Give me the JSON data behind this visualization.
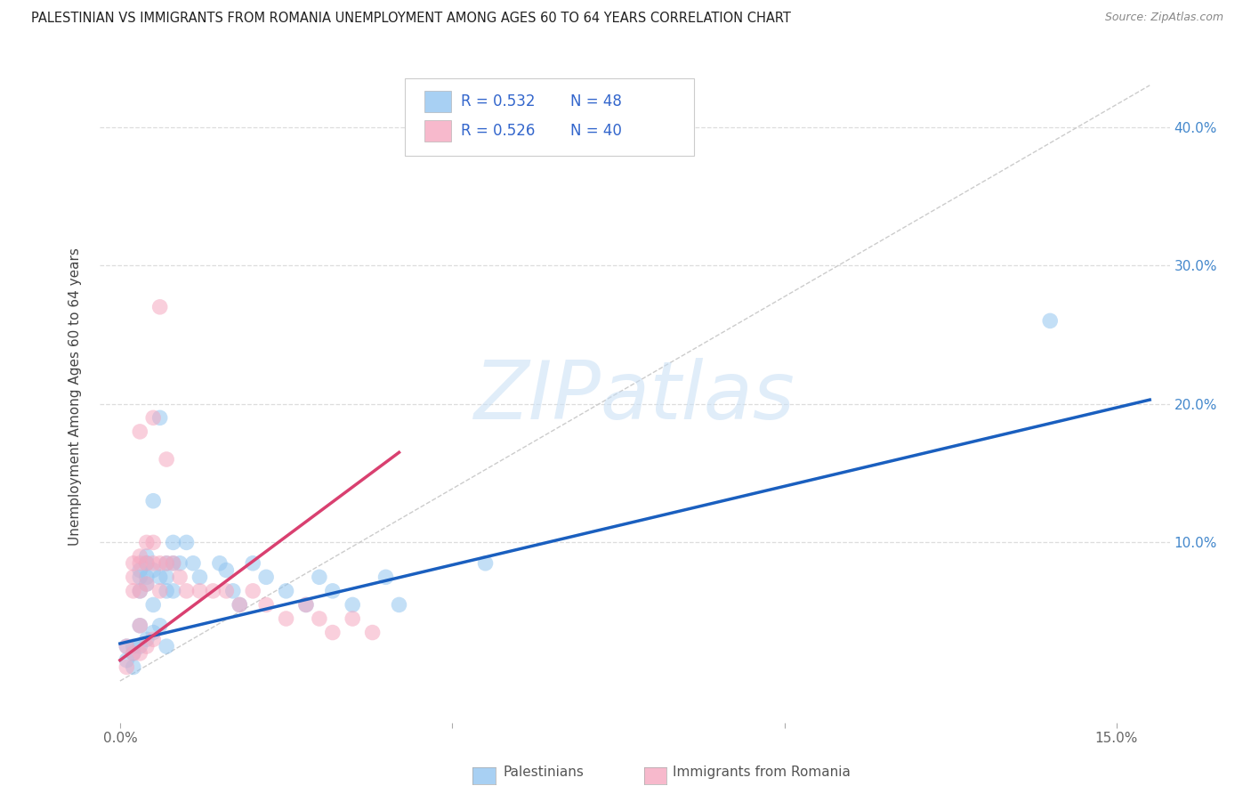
{
  "title": "PALESTINIAN VS IMMIGRANTS FROM ROMANIA UNEMPLOYMENT AMONG AGES 60 TO 64 YEARS CORRELATION CHART",
  "source": "Source: ZipAtlas.com",
  "xlim": [
    -0.003,
    0.158
  ],
  "ylim": [
    -0.03,
    0.44
  ],
  "ylabel": "Unemployment Among Ages 60 to 64 years",
  "xtick_positions": [
    0.0,
    0.05,
    0.1,
    0.15
  ],
  "xtick_labels": [
    "0.0%",
    "",
    "",
    "15.0%"
  ],
  "ytick_positions": [
    0.0,
    0.1,
    0.2,
    0.3,
    0.4
  ],
  "ytick_labels_right": [
    "",
    "10.0%",
    "20.0%",
    "30.0%",
    "40.0%"
  ],
  "legend_r1": "R = 0.532",
  "legend_n1": "N = 48",
  "legend_r2": "R = 0.526",
  "legend_n2": "N = 40",
  "bottom_legend_label1": "Palestinians",
  "bottom_legend_label2": "Immigrants from Romania",
  "blue_scatter_x": [
    0.001,
    0.001,
    0.002,
    0.002,
    0.002,
    0.003,
    0.003,
    0.003,
    0.003,
    0.003,
    0.004,
    0.004,
    0.004,
    0.004,
    0.004,
    0.005,
    0.005,
    0.005,
    0.005,
    0.006,
    0.006,
    0.006,
    0.007,
    0.007,
    0.007,
    0.007,
    0.008,
    0.008,
    0.008,
    0.009,
    0.01,
    0.011,
    0.012,
    0.015,
    0.016,
    0.017,
    0.018,
    0.02,
    0.022,
    0.025,
    0.028,
    0.03,
    0.032,
    0.035,
    0.04,
    0.042,
    0.055,
    0.14
  ],
  "blue_scatter_y": [
    0.025,
    0.015,
    0.025,
    0.02,
    0.01,
    0.08,
    0.075,
    0.065,
    0.04,
    0.025,
    0.09,
    0.085,
    0.075,
    0.07,
    0.03,
    0.13,
    0.08,
    0.055,
    0.035,
    0.19,
    0.075,
    0.04,
    0.085,
    0.075,
    0.065,
    0.025,
    0.1,
    0.085,
    0.065,
    0.085,
    0.1,
    0.085,
    0.075,
    0.085,
    0.08,
    0.065,
    0.055,
    0.085,
    0.075,
    0.065,
    0.055,
    0.075,
    0.065,
    0.055,
    0.075,
    0.055,
    0.085,
    0.26
  ],
  "pink_scatter_x": [
    0.001,
    0.001,
    0.002,
    0.002,
    0.002,
    0.002,
    0.003,
    0.003,
    0.003,
    0.003,
    0.003,
    0.003,
    0.004,
    0.004,
    0.004,
    0.004,
    0.005,
    0.005,
    0.005,
    0.005,
    0.006,
    0.006,
    0.007,
    0.007,
    0.008,
    0.009,
    0.01,
    0.012,
    0.014,
    0.016,
    0.018,
    0.02,
    0.022,
    0.025,
    0.028,
    0.03,
    0.032,
    0.035,
    0.038,
    0.006
  ],
  "pink_scatter_y": [
    0.025,
    0.01,
    0.085,
    0.075,
    0.065,
    0.02,
    0.18,
    0.09,
    0.085,
    0.065,
    0.04,
    0.02,
    0.1,
    0.085,
    0.07,
    0.025,
    0.19,
    0.1,
    0.085,
    0.03,
    0.085,
    0.065,
    0.16,
    0.085,
    0.085,
    0.075,
    0.065,
    0.065,
    0.065,
    0.065,
    0.055,
    0.065,
    0.055,
    0.045,
    0.055,
    0.045,
    0.035,
    0.045,
    0.035,
    0.27
  ],
  "blue_line_x": [
    0.0,
    0.155
  ],
  "blue_line_y": [
    0.027,
    0.203
  ],
  "pink_line_x": [
    0.0,
    0.042
  ],
  "pink_line_y": [
    0.015,
    0.165
  ],
  "diag_line_x": [
    0.0,
    0.155
  ],
  "diag_line_y": [
    0.0,
    0.43
  ],
  "blue_dot_color": "#92c5f0",
  "pink_dot_color": "#f5a8c0",
  "blue_line_color": "#1a5fbf",
  "pink_line_color": "#d94070",
  "diag_color": "#cccccc",
  "watermark_text": "ZIPatlas",
  "watermark_color": "#c8dff5",
  "grid_color": "#dddddd",
  "bg_color": "#ffffff",
  "legend_text_color": "#333333",
  "legend_value_color": "#3366cc"
}
